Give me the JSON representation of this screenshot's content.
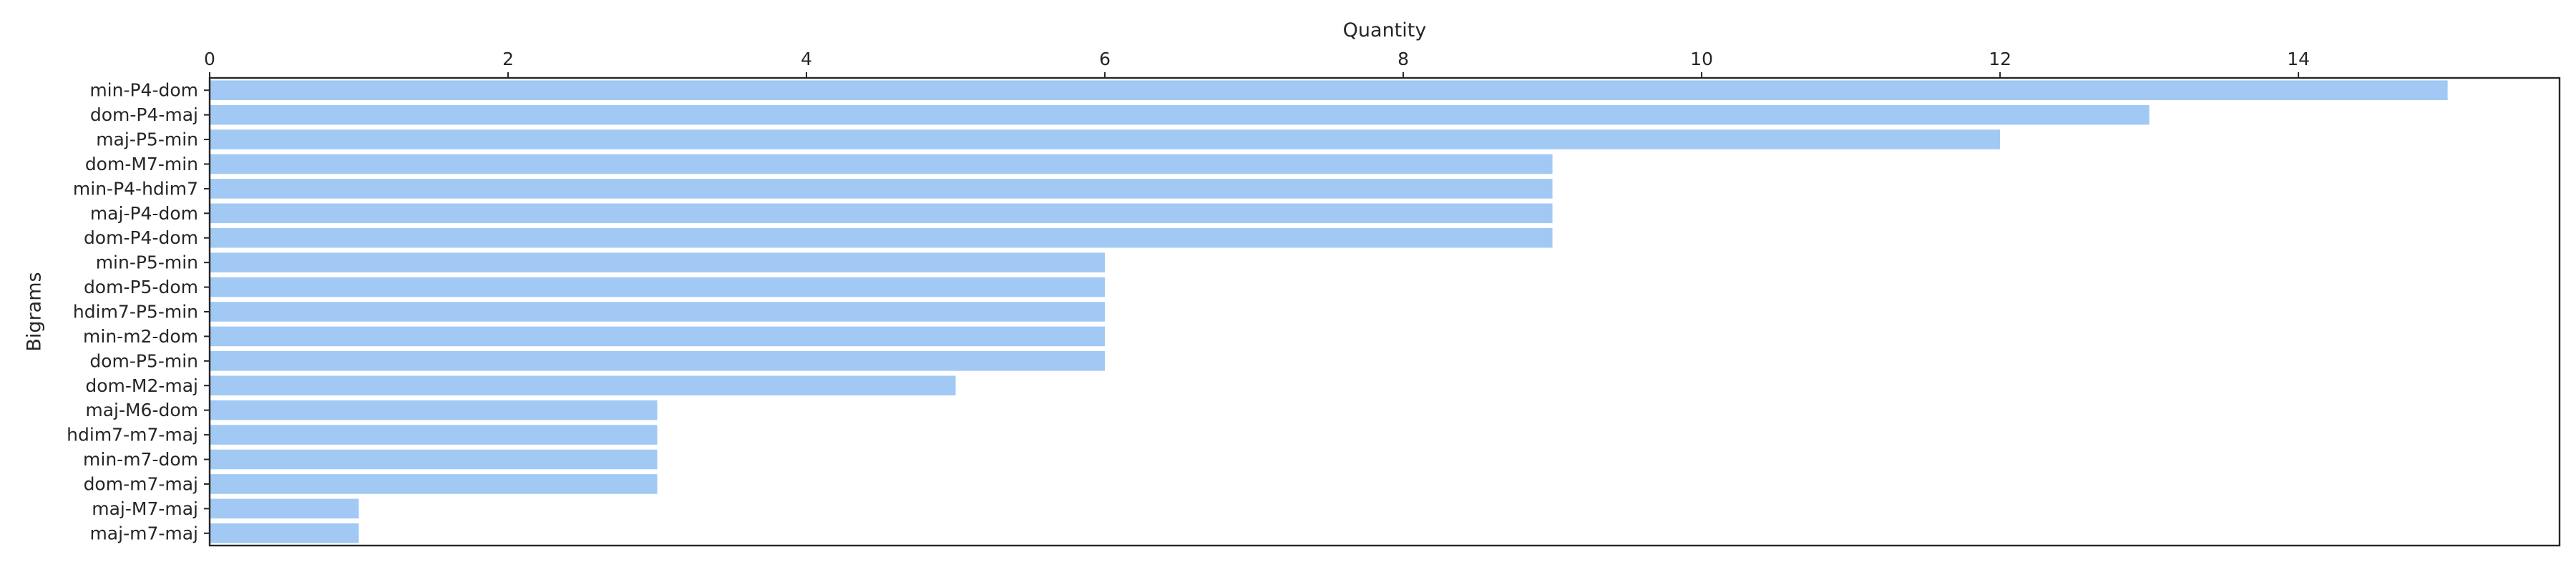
{
  "chart_data": {
    "type": "bar",
    "orientation": "horizontal",
    "xlabel": "Quantity",
    "ylabel": "Bigrams",
    "xlim": [
      0,
      15.75
    ],
    "x_ticks": [
      "0",
      "2",
      "4",
      "6",
      "8",
      "10",
      "12",
      "14"
    ],
    "x_axis_position": "top",
    "grid": false,
    "bar_color": "#a1c9f4",
    "categories": [
      "min-P4-dom",
      "dom-P4-maj",
      "maj-P5-min",
      "dom-M7-min",
      "min-P4-hdim7",
      "maj-P4-dom",
      "dom-P4-dom",
      "min-P5-min",
      "dom-P5-dom",
      "hdim7-P5-min",
      "min-m2-dom",
      "dom-P5-min",
      "dom-M2-maj",
      "maj-M6-dom",
      "hdim7-m7-maj",
      "min-m7-dom",
      "dom-m7-maj",
      "maj-M7-maj",
      "maj-m7-maj"
    ],
    "values": [
      15,
      13,
      12,
      9,
      9,
      9,
      9,
      6,
      6,
      6,
      6,
      6,
      5,
      3,
      3,
      3,
      3,
      1,
      1
    ]
  }
}
